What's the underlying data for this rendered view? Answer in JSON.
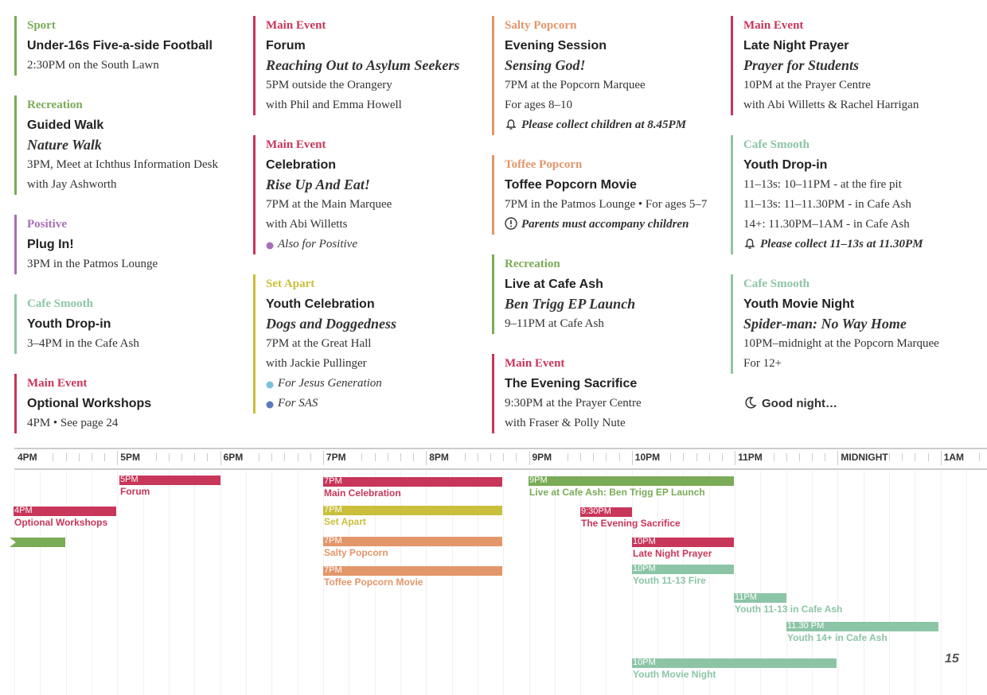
{
  "columns": [
    {
      "events": [
        {
          "category": "Sport",
          "color": "#7aab57",
          "title": "Under-16s Five-a-side Football",
          "lines": [
            "2:30PM on the South Lawn"
          ]
        },
        {
          "category": "Recreation",
          "color": "#7aab57",
          "title": "Guided Walk",
          "subtitle": "Nature Walk",
          "lines": [
            "3PM, Meet at Ichthus Information Desk",
            "with Jay Ashworth"
          ]
        },
        {
          "category": "Positive",
          "color": "#a86fb8",
          "title": "Plug In!",
          "lines": [
            "3PM in the Patmos Lounge"
          ]
        },
        {
          "category": "Cafe Smooth",
          "color": "#8cc5a6",
          "title": "Youth Drop-in",
          "lines": [
            "3–4PM in the Cafe Ash"
          ]
        },
        {
          "category": "Main Event",
          "color": "#c8365a",
          "title": "Optional Workshops",
          "lines": [
            "4PM  •  See page 24"
          ]
        }
      ]
    },
    {
      "events": [
        {
          "category": "Main Event",
          "color": "#c8365a",
          "title": "Forum",
          "subtitle": "Reaching Out to Asylum Seekers",
          "lines": [
            "5PM outside the Orangery",
            "with Phil and Emma Howell"
          ]
        },
        {
          "category": "Main Event",
          "color": "#c8365a",
          "title": "Celebration",
          "subtitle": "Rise Up And Eat!",
          "lines": [
            "7PM at the Main Marquee",
            "with Abi Willetts"
          ],
          "notes": [
            {
              "icon": "dot",
              "color": "#a86fb8",
              "text": "Also for Positive"
            }
          ]
        },
        {
          "category": "Set Apart",
          "color": "#c9bf3c",
          "title": "Youth Celebration",
          "subtitle": "Dogs and Doggedness",
          "lines": [
            "7PM at the Great Hall",
            "with Jackie Pullinger"
          ],
          "notes": [
            {
              "icon": "dot",
              "color": "#7dc0de",
              "text": "For Jesus Generation"
            },
            {
              "icon": "dot",
              "color": "#5b7bbf",
              "text": "For SAS"
            }
          ]
        }
      ]
    },
    {
      "events": [
        {
          "category": "Salty Popcorn",
          "color": "#e3966a",
          "title": "Evening Session",
          "subtitle": "Sensing God!",
          "lines": [
            "7PM at the Popcorn Marquee",
            "For ages 8–10"
          ],
          "notes": [
            {
              "icon": "bell",
              "text": "Please collect children at 8.45PM"
            }
          ]
        },
        {
          "category": "Toffee Popcorn",
          "color": "#e3966a",
          "title": "Toffee Popcorn Movie",
          "lines": [
            "7PM in the Patmos Lounge  •  For ages 5–7"
          ],
          "notes": [
            {
              "icon": "alert",
              "text": "Parents must accompany children"
            }
          ]
        },
        {
          "category": "Recreation",
          "color": "#7aab57",
          "title": "Live at Cafe Ash",
          "subtitle": "Ben Trigg EP Launch",
          "lines": [
            "9–11PM at Cafe Ash"
          ]
        },
        {
          "category": "Main Event",
          "color": "#c8365a",
          "title": "The Evening Sacrifice",
          "lines": [
            "9:30PM at the Prayer Centre",
            "with Fraser & Polly Nute"
          ]
        }
      ]
    },
    {
      "events": [
        {
          "category": "Main Event",
          "color": "#c8365a",
          "title": "Late Night Prayer",
          "subtitle": "Prayer for Students",
          "lines": [
            "10PM at the Prayer Centre",
            "with Abi Willetts & Rachel Harrigan"
          ]
        },
        {
          "category": "Cafe Smooth",
          "color": "#8cc5a6",
          "title": "Youth Drop-in",
          "lines": [
            "11–13s: 10–11PM - at the fire pit",
            "11–13s: 11–11.30PM - in Cafe Ash",
            "14+: 11.30PM–1AM - in Cafe Ash"
          ],
          "notes": [
            {
              "icon": "bell",
              "text": "Please collect 11–13s at 11.30PM"
            }
          ]
        },
        {
          "category": "Cafe Smooth",
          "color": "#8cc5a6",
          "title": "Youth Movie Night",
          "subtitle": "Spider-man: No Way Home",
          "lines": [
            "10PM–midnight at the Popcorn Marquee",
            "For 12+"
          ]
        }
      ],
      "footer": "Good night…"
    }
  ],
  "timeline": {
    "hours": [
      "4PM",
      "5PM",
      "6PM",
      "7PM",
      "8PM",
      "9PM",
      "10PM",
      "11PM",
      "MIDNIGHT",
      "1AM"
    ],
    "bars": [
      {
        "time": "5PM",
        "label": "Forum",
        "color": "#c8365a"
      },
      {
        "time": "4PM",
        "label": "Optional Workshops",
        "color": "#c8365a"
      },
      {
        "color": "#7aab57"
      },
      {
        "time": "7PM",
        "label": "Main Celebration",
        "color": "#c8365a"
      },
      {
        "time": "7PM",
        "label": "Set Apart",
        "color": "#c9bf3c"
      },
      {
        "time": "7PM",
        "label": "Salty Popcorn",
        "color": "#e3966a"
      },
      {
        "time": "7PM",
        "label": "Toffee Popcorn Movie",
        "color": "#e3966a"
      },
      {
        "time": "9PM",
        "label": "Live at Cafe Ash: Ben Trigg EP Launch",
        "color": "#7aab57"
      },
      {
        "time": "9:30PM",
        "label": "The Evening Sacrifice",
        "color": "#c8365a"
      },
      {
        "time": "10PM",
        "label": "Late Night Prayer",
        "color": "#c8365a"
      },
      {
        "time": "10PM",
        "label": "Youth 11-13 Fire",
        "color": "#8cc5a6"
      },
      {
        "time": "11PM",
        "label": "Youth 11-13 in Cafe Ash",
        "color": "#8cc5a6"
      },
      {
        "time": "11.30 PM",
        "label": "Youth 14+ in Cafe Ash",
        "color": "#8cc5a6"
      },
      {
        "time": "10PM",
        "label": "Youth Movie Night",
        "color": "#8cc5a6"
      }
    ]
  },
  "page_number": "15"
}
